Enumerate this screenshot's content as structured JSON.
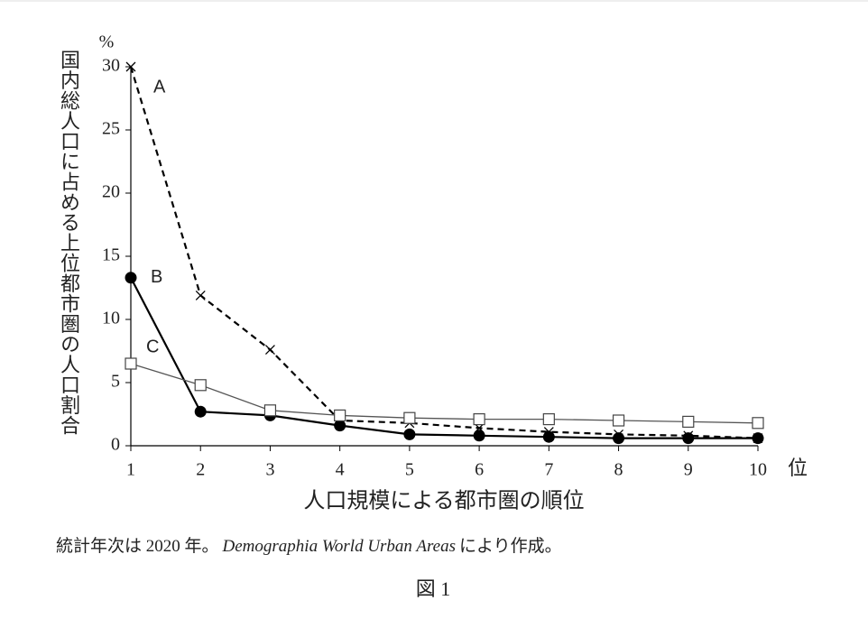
{
  "chart_data": {
    "type": "line",
    "y_unit": "%",
    "x_unit": "位",
    "y_label": "国内総人口に占める上位都市圏の人口割合",
    "x_label": "人口規模による都市圏の順位",
    "note": [
      "統計年次は 2020 年。",
      "Demographia World Urban Areas",
      "により作成。"
    ],
    "caption": "図 1",
    "x": [
      1,
      2,
      3,
      4,
      5,
      6,
      7,
      8,
      9,
      10
    ],
    "xlim": [
      1,
      10
    ],
    "xticks": [
      1,
      2,
      3,
      4,
      5,
      6,
      7,
      8,
      9,
      10
    ],
    "ylim": [
      0,
      30
    ],
    "yticks": [
      0,
      5,
      10,
      15,
      20,
      25,
      30
    ],
    "series": [
      {
        "name": "A",
        "color": "#000000",
        "dash": true,
        "marker": "cross",
        "values": [
          30,
          11.9,
          7.6,
          2.0,
          1.8,
          1.4,
          1.1,
          0.9,
          0.8,
          0.6
        ]
      },
      {
        "name": "B",
        "color": "#000000",
        "dash": false,
        "marker": "filled-circle",
        "values": [
          13.3,
          2.7,
          2.4,
          1.6,
          0.9,
          0.8,
          0.7,
          0.6,
          0.6,
          0.6
        ]
      },
      {
        "name": "C",
        "color": "#555555",
        "dash": false,
        "marker": "open-square",
        "values": [
          6.5,
          4.8,
          2.8,
          2.4,
          2.2,
          2.1,
          2.1,
          2.0,
          1.9,
          1.8
        ]
      }
    ]
  }
}
